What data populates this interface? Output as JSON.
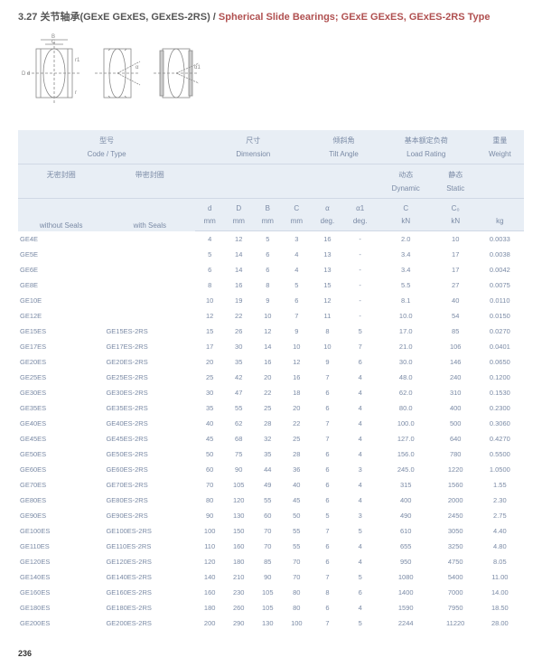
{
  "title_cn": "3.27 关节轴承(GExE GExES, GExES-2RS) / ",
  "title_en": "Spherical Slide Bearings; GExE GExES, GExES-2RS Type",
  "page_number": "236",
  "header": {
    "col1_cn": "型号",
    "col1_en": "Code / Type",
    "col2_cn": "尺寸",
    "col2_en": "Dimension",
    "col3_cn": "倾斜角",
    "col3_en": "Tilt Angle",
    "col4_cn": "基本额定负荷",
    "col4_en": "Load Rating",
    "col5_cn": "重量",
    "col5_en": "Weight",
    "sub_without_cn": "无密封圈",
    "sub_with_cn": "带密封圈",
    "sub_without_en": "without Seals",
    "sub_with_en": "with Seals",
    "sub_dyn_cn": "动态",
    "sub_dyn_en": "Dynamic",
    "sub_stat_cn": "静态",
    "sub_stat_en": "Static",
    "d": "d",
    "D": "D",
    "B": "B",
    "C": "C",
    "alpha": "α",
    "alpha1": "α1",
    "Cdyn": "C",
    "Cstat": "C₀",
    "mm": "mm",
    "deg": "deg.",
    "kN": "kN",
    "kg": "kg"
  },
  "rows": [
    [
      "GE4E",
      "",
      "4",
      "12",
      "5",
      "3",
      "16",
      "-",
      "2.0",
      "10",
      "0.0033"
    ],
    [
      "GE5E",
      "",
      "5",
      "14",
      "6",
      "4",
      "13",
      "-",
      "3.4",
      "17",
      "0.0038"
    ],
    [
      "GE6E",
      "",
      "6",
      "14",
      "6",
      "4",
      "13",
      "-",
      "3.4",
      "17",
      "0.0042"
    ],
    [
      "GE8E",
      "",
      "8",
      "16",
      "8",
      "5",
      "15",
      "-",
      "5.5",
      "27",
      "0.0075"
    ],
    [
      "GE10E",
      "",
      "10",
      "19",
      "9",
      "6",
      "12",
      "-",
      "8.1",
      "40",
      "0.0110"
    ],
    [
      "GE12E",
      "",
      "12",
      "22",
      "10",
      "7",
      "11",
      "-",
      "10.0",
      "54",
      "0.0150"
    ],
    [
      "GE15ES",
      "GE15ES-2RS",
      "15",
      "26",
      "12",
      "9",
      "8",
      "5",
      "17.0",
      "85",
      "0.0270"
    ],
    [
      "GE17ES",
      "GE17ES-2RS",
      "17",
      "30",
      "14",
      "10",
      "10",
      "7",
      "21.0",
      "106",
      "0.0401"
    ],
    [
      "GE20ES",
      "GE20ES-2RS",
      "20",
      "35",
      "16",
      "12",
      "9",
      "6",
      "30.0",
      "146",
      "0.0650"
    ],
    [
      "GE25ES",
      "GE25ES-2RS",
      "25",
      "42",
      "20",
      "16",
      "7",
      "4",
      "48.0",
      "240",
      "0.1200"
    ],
    [
      "GE30ES",
      "GE30ES-2RS",
      "30",
      "47",
      "22",
      "18",
      "6",
      "4",
      "62.0",
      "310",
      "0.1530"
    ],
    [
      "GE35ES",
      "GE35ES-2RS",
      "35",
      "55",
      "25",
      "20",
      "6",
      "4",
      "80.0",
      "400",
      "0.2300"
    ],
    [
      "GE40ES",
      "GE40ES-2RS",
      "40",
      "62",
      "28",
      "22",
      "7",
      "4",
      "100.0",
      "500",
      "0.3060"
    ],
    [
      "GE45ES",
      "GE45ES-2RS",
      "45",
      "68",
      "32",
      "25",
      "7",
      "4",
      "127.0",
      "640",
      "0.4270"
    ],
    [
      "GE50ES",
      "GE50ES-2RS",
      "50",
      "75",
      "35",
      "28",
      "6",
      "4",
      "156.0",
      "780",
      "0.5500"
    ],
    [
      "GE60ES",
      "GE60ES-2RS",
      "60",
      "90",
      "44",
      "36",
      "6",
      "3",
      "245.0",
      "1220",
      "1.0500"
    ],
    [
      "GE70ES",
      "GE70ES-2RS",
      "70",
      "105",
      "49",
      "40",
      "6",
      "4",
      "315",
      "1560",
      "1.55"
    ],
    [
      "GE80ES",
      "GE80ES-2RS",
      "80",
      "120",
      "55",
      "45",
      "6",
      "4",
      "400",
      "2000",
      "2.30"
    ],
    [
      "GE90ES",
      "GE90ES-2RS",
      "90",
      "130",
      "60",
      "50",
      "5",
      "3",
      "490",
      "2450",
      "2.75"
    ],
    [
      "GE100ES",
      "GE100ES-2RS",
      "100",
      "150",
      "70",
      "55",
      "7",
      "5",
      "610",
      "3050",
      "4.40"
    ],
    [
      "GE110ES",
      "GE110ES-2RS",
      "110",
      "160",
      "70",
      "55",
      "6",
      "4",
      "655",
      "3250",
      "4.80"
    ],
    [
      "GE120ES",
      "GE120ES-2RS",
      "120",
      "180",
      "85",
      "70",
      "6",
      "4",
      "950",
      "4750",
      "8.05"
    ],
    [
      "GE140ES",
      "GE140ES-2RS",
      "140",
      "210",
      "90",
      "70",
      "7",
      "5",
      "1080",
      "5400",
      "11.00"
    ],
    [
      "GE160ES",
      "GE160ES-2RS",
      "160",
      "230",
      "105",
      "80",
      "8",
      "6",
      "1400",
      "7000",
      "14.00"
    ],
    [
      "GE180ES",
      "GE180ES-2RS",
      "180",
      "260",
      "105",
      "80",
      "6",
      "4",
      "1590",
      "7950",
      "18.50"
    ],
    [
      "GE200ES",
      "GE200ES-2RS",
      "200",
      "290",
      "130",
      "100",
      "7",
      "5",
      "2244",
      "11220",
      "28.00"
    ]
  ],
  "colors": {
    "header_bg": "#e8eef5",
    "text": "#7a8aa5"
  }
}
